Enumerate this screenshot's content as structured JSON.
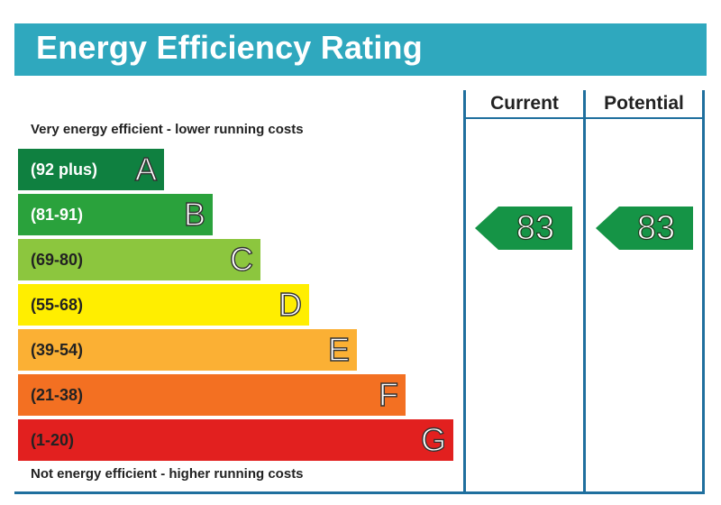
{
  "title": "Energy Efficiency Rating",
  "columns": {
    "current": "Current",
    "potential": "Potential"
  },
  "notes": {
    "top": "Very energy efficient - lower running costs",
    "bottom": "Not energy efficient - higher running costs"
  },
  "colors": {
    "title_bar": "#2fa8be",
    "frame": "#1f6f9e",
    "arrow": "#159446"
  },
  "chart_data": {
    "type": "table",
    "bands": [
      {
        "letter": "A",
        "range": "(92 plus)",
        "color": "#0f8040",
        "text_color": "#ffffff"
      },
      {
        "letter": "B",
        "range": "(81-91)",
        "color": "#2aa23c",
        "text_color": "#ffffff"
      },
      {
        "letter": "C",
        "range": "(69-80)",
        "color": "#8cc63e",
        "text_color": "#222222"
      },
      {
        "letter": "D",
        "range": "(55-68)",
        "color": "#ffee00",
        "text_color": "#222222"
      },
      {
        "letter": "E",
        "range": "(39-54)",
        "color": "#fbb034",
        "text_color": "#222222"
      },
      {
        "letter": "F",
        "range": "(21-38)",
        "color": "#f37022",
        "text_color": "#222222"
      },
      {
        "letter": "G",
        "range": "(1-20)",
        "color": "#e2201f",
        "text_color": "#222222"
      }
    ],
    "current": {
      "value": "83",
      "band": "B"
    },
    "potential": {
      "value": "83",
      "band": "B"
    }
  }
}
